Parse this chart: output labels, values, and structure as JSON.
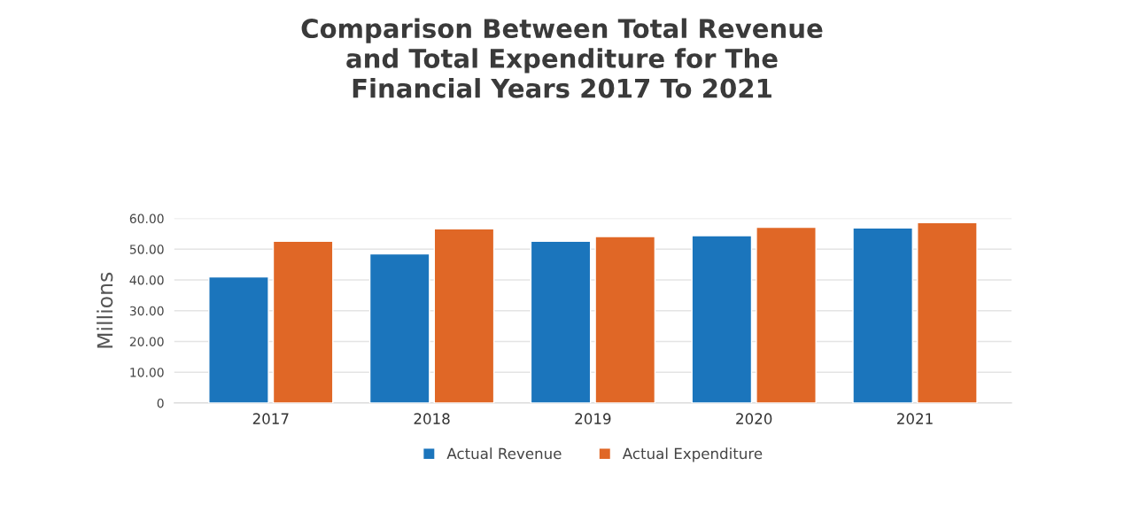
{
  "chart_data": {
    "type": "bar",
    "title": "Comparison Between Total Revenue\nand Total Expenditure for The\nFinancial Years 2017 To 2021",
    "ylabel": "Millions",
    "categories": [
      "2017",
      "2018",
      "2019",
      "2020",
      "2021"
    ],
    "series": [
      {
        "name": "Actual Revenue",
        "color": "#1b75bc",
        "values": [
          41.0,
          48.5,
          52.6,
          54.4,
          56.9
        ]
      },
      {
        "name": "Actual Expenditure",
        "color": "#e06726",
        "values": [
          52.6,
          56.6,
          54.1,
          57.1,
          58.6
        ]
      }
    ],
    "ylim": [
      0,
      60
    ],
    "yticks": [
      {
        "value": 0,
        "label": "0"
      },
      {
        "value": 10,
        "label": "10.00"
      },
      {
        "value": 20,
        "label": "20.00"
      },
      {
        "value": 30,
        "label": "30.00"
      },
      {
        "value": 40,
        "label": "40.00"
      },
      {
        "value": 50,
        "label": "50.00"
      },
      {
        "value": 60,
        "label": "60.00"
      }
    ],
    "grid": "y",
    "legend": "bottom"
  }
}
